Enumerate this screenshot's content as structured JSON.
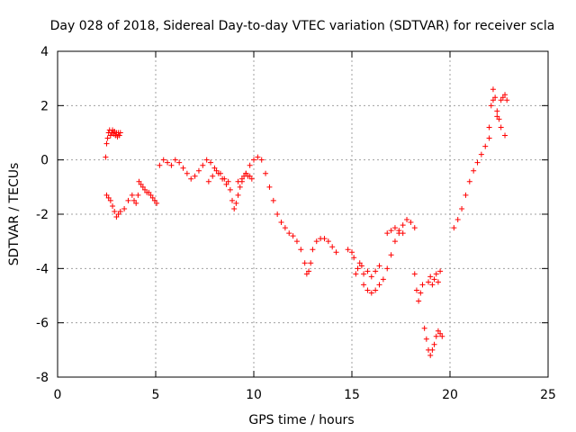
{
  "chart_data": {
    "type": "scatter",
    "title": "Day 028 of 2018, Sidereal Day-to-day VTEC variation (SDTVAR) for receiver scla",
    "xlabel": "GPS time / hours",
    "ylabel": "SDTVAR / TECUs",
    "xlim": [
      0,
      25
    ],
    "ylim": [
      -8,
      4
    ],
    "xticks": [
      0,
      5,
      10,
      15,
      20,
      25
    ],
    "yticks": [
      -8,
      -6,
      -4,
      -2,
      0,
      2,
      4
    ],
    "grid": true,
    "legend": "none",
    "marker": "+",
    "series_color": "#ff0000",
    "series": [
      {
        "name": "SDTVAR",
        "x": [
          2.45,
          2.5,
          2.55,
          2.6,
          2.65,
          2.7,
          2.75,
          2.8,
          2.85,
          2.9,
          2.95,
          3.0,
          3.05,
          3.1,
          3.15,
          3.2,
          2.5,
          2.6,
          2.7,
          2.8,
          2.9,
          3.0,
          3.1,
          3.2,
          3.4,
          3.6,
          3.8,
          3.9,
          4.0,
          4.1,
          4.15,
          4.25,
          4.35,
          4.45,
          4.55,
          4.65,
          4.75,
          4.85,
          4.95,
          5.05,
          5.2,
          5.4,
          5.6,
          5.8,
          6.0,
          6.2,
          6.4,
          6.6,
          6.8,
          7.0,
          7.2,
          7.4,
          7.6,
          7.8,
          8.0,
          8.2,
          8.4,
          8.6,
          8.8,
          8.9,
          9.0,
          9.1,
          9.2,
          9.3,
          9.4,
          9.5,
          9.6,
          9.7,
          9.8,
          9.9,
          7.7,
          7.9,
          8.1,
          8.3,
          8.5,
          8.7,
          9.2,
          9.4,
          9.6,
          9.8,
          10.0,
          10.2,
          10.4,
          10.6,
          10.8,
          11.0,
          11.2,
          11.4,
          11.6,
          11.8,
          12.0,
          12.2,
          12.4,
          12.6,
          12.7,
          12.8,
          12.9,
          13.0,
          13.2,
          13.4,
          13.6,
          13.8,
          14.0,
          14.2,
          14.8,
          15.0,
          15.1,
          15.2,
          15.3,
          15.4,
          15.5,
          15.6,
          15.8,
          16.0,
          16.2,
          16.4,
          15.6,
          15.8,
          16.0,
          16.2,
          16.4,
          16.6,
          16.8,
          17.0,
          17.2,
          17.4,
          17.6,
          17.8,
          18.0,
          18.2,
          16.8,
          17.0,
          17.2,
          17.4,
          17.6,
          18.2,
          18.3,
          18.4,
          18.5,
          18.6,
          18.7,
          18.8,
          18.9,
          19.0,
          19.1,
          19.2,
          19.3,
          19.4,
          19.5,
          19.6,
          18.9,
          19.0,
          19.1,
          19.2,
          19.3,
          19.4,
          19.5,
          20.2,
          20.4,
          20.6,
          20.8,
          21.0,
          21.2,
          21.4,
          21.6,
          21.8,
          22.0,
          22.0,
          22.1,
          22.2,
          22.3,
          22.4,
          22.5,
          22.6,
          22.7,
          22.8,
          22.9,
          22.2,
          22.4,
          22.6,
          22.8
        ],
        "y": [
          0.1,
          0.6,
          0.8,
          1.0,
          1.1,
          0.9,
          1.0,
          1.1,
          0.95,
          1.05,
          0.9,
          1.0,
          0.85,
          1.0,
          0.9,
          1.0,
          -1.3,
          -1.4,
          -1.5,
          -1.7,
          -1.9,
          -2.1,
          -2.0,
          -1.9,
          -1.8,
          -1.5,
          -1.3,
          -1.5,
          -1.6,
          -1.3,
          -0.8,
          -0.9,
          -1.0,
          -1.1,
          -1.2,
          -1.2,
          -1.3,
          -1.4,
          -1.5,
          -1.6,
          -0.2,
          0.0,
          -0.1,
          -0.2,
          0.0,
          -0.1,
          -0.3,
          -0.5,
          -0.7,
          -0.6,
          -0.4,
          -0.2,
          0.0,
          -0.1,
          -0.3,
          -0.5,
          -0.7,
          -0.9,
          -1.1,
          -1.5,
          -1.8,
          -1.6,
          -1.3,
          -1.0,
          -0.8,
          -0.6,
          -0.5,
          -0.6,
          -0.6,
          -0.7,
          -0.8,
          -0.6,
          -0.4,
          -0.5,
          -0.7,
          -0.8,
          -0.8,
          -0.7,
          -0.5,
          -0.2,
          0.0,
          0.1,
          0.0,
          -0.5,
          -1.0,
          -1.5,
          -2.0,
          -2.3,
          -2.5,
          -2.7,
          -2.8,
          -3.0,
          -3.3,
          -3.8,
          -4.2,
          -4.1,
          -3.8,
          -3.3,
          -3.0,
          -2.9,
          -2.9,
          -3.0,
          -3.2,
          -3.4,
          -3.3,
          -3.4,
          -3.6,
          -4.2,
          -4.0,
          -3.8,
          -3.9,
          -4.2,
          -4.1,
          -4.3,
          -4.1,
          -3.9,
          -4.6,
          -4.8,
          -4.9,
          -4.8,
          -4.6,
          -4.4,
          -4.0,
          -3.5,
          -3.0,
          -2.7,
          -2.4,
          -2.2,
          -2.3,
          -2.5,
          -2.7,
          -2.6,
          -2.5,
          -2.6,
          -2.7,
          -4.2,
          -4.8,
          -5.2,
          -4.9,
          -4.6,
          -6.2,
          -6.6,
          -7.0,
          -7.2,
          -7.0,
          -6.8,
          -6.5,
          -6.3,
          -6.4,
          -6.5,
          -4.5,
          -4.3,
          -4.6,
          -4.4,
          -4.2,
          -4.5,
          -4.1,
          -2.5,
          -2.2,
          -1.8,
          -1.3,
          -0.8,
          -0.4,
          -0.1,
          0.2,
          0.5,
          0.8,
          1.2,
          2.0,
          2.6,
          2.3,
          1.8,
          1.5,
          2.2,
          2.3,
          2.4,
          2.2,
          2.2,
          1.6,
          1.2,
          0.9
        ]
      }
    ]
  }
}
